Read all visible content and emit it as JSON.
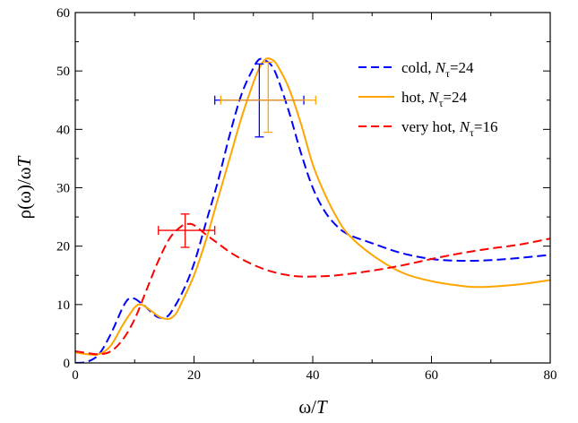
{
  "chart_data": {
    "type": "line",
    "xlabel": {
      "main": "ω/",
      "italic": "T"
    },
    "ylabel": {
      "main": "ρ(ω)/ω",
      "italic": "T"
    },
    "xlim": [
      0,
      80
    ],
    "ylim": [
      0,
      60
    ],
    "x_ticks": [
      0,
      20,
      40,
      60,
      80
    ],
    "y_ticks": [
      0,
      10,
      20,
      30,
      40,
      50,
      60
    ],
    "grid": false,
    "legend_position": "top-right",
    "series": [
      {
        "name": {
          "prefix": "cold, ",
          "var": "N",
          "sub": "τ",
          "suffix": "=24"
        },
        "color": "#0000ff",
        "style": "dashed",
        "points": [
          [
            0,
            0
          ],
          [
            2,
            0.2
          ],
          [
            4,
            1.5
          ],
          [
            6,
            5
          ],
          [
            8,
            9.5
          ],
          [
            9,
            11
          ],
          [
            10,
            11
          ],
          [
            11,
            10.3
          ],
          [
            12,
            9.5
          ],
          [
            13,
            8.5
          ],
          [
            14,
            7.8
          ],
          [
            15,
            7.8
          ],
          [
            16,
            8.5
          ],
          [
            18,
            12
          ],
          [
            20,
            17
          ],
          [
            22,
            24
          ],
          [
            24,
            31
          ],
          [
            26,
            39
          ],
          [
            28,
            46
          ],
          [
            30,
            50.5
          ],
          [
            31,
            52
          ],
          [
            32,
            51.8
          ],
          [
            33,
            51
          ],
          [
            34,
            49
          ],
          [
            36,
            43
          ],
          [
            38,
            36
          ],
          [
            40,
            30
          ],
          [
            42,
            26
          ],
          [
            44,
            23.5
          ],
          [
            46,
            22
          ],
          [
            50,
            20.5
          ],
          [
            55,
            18.8
          ],
          [
            60,
            17.8
          ],
          [
            65,
            17.5
          ],
          [
            70,
            17.6
          ],
          [
            75,
            18
          ],
          [
            80,
            18.5
          ]
        ]
      },
      {
        "name": {
          "prefix": "hot, ",
          "var": "N",
          "sub": "τ",
          "suffix": "=24"
        },
        "color": "#ffa500",
        "style": "solid",
        "points": [
          [
            0,
            1.8
          ],
          [
            2,
            1.5
          ],
          [
            4,
            1.5
          ],
          [
            6,
            3
          ],
          [
            8,
            6.5
          ],
          [
            10,
            9.5
          ],
          [
            11,
            10
          ],
          [
            12,
            9.5
          ],
          [
            14,
            8
          ],
          [
            15,
            7.6
          ],
          [
            16,
            7.6
          ],
          [
            17,
            8.5
          ],
          [
            18,
            10.5
          ],
          [
            20,
            15
          ],
          [
            22,
            21
          ],
          [
            24,
            28
          ],
          [
            26,
            35
          ],
          [
            28,
            42
          ],
          [
            30,
            48
          ],
          [
            31,
            50.5
          ],
          [
            32,
            52
          ],
          [
            33,
            52
          ],
          [
            34,
            51
          ],
          [
            36,
            47
          ],
          [
            38,
            41
          ],
          [
            40,
            34
          ],
          [
            42,
            29
          ],
          [
            44,
            25
          ],
          [
            46,
            22
          ],
          [
            50,
            18.5
          ],
          [
            55,
            15.5
          ],
          [
            60,
            14
          ],
          [
            65,
            13.2
          ],
          [
            68,
            13
          ],
          [
            72,
            13.2
          ],
          [
            76,
            13.6
          ],
          [
            80,
            14.2
          ]
        ]
      },
      {
        "name": {
          "prefix": "very hot, ",
          "var": "N",
          "sub": "τ",
          "suffix": "=16"
        },
        "color": "#ff0000",
        "style": "dashed",
        "points": [
          [
            0,
            2
          ],
          [
            2,
            1.7
          ],
          [
            4,
            1.5
          ],
          [
            6,
            2
          ],
          [
            8,
            4
          ],
          [
            10,
            7.5
          ],
          [
            12,
            12.5
          ],
          [
            14,
            17.5
          ],
          [
            16,
            21.5
          ],
          [
            18,
            23.5
          ],
          [
            19,
            23.8
          ],
          [
            20,
            23.6
          ],
          [
            22,
            22
          ],
          [
            24,
            20.5
          ],
          [
            26,
            19
          ],
          [
            28,
            17.8
          ],
          [
            30,
            16.8
          ],
          [
            32,
            16
          ],
          [
            34,
            15.4
          ],
          [
            36,
            15
          ],
          [
            38,
            14.8
          ],
          [
            40,
            14.8
          ],
          [
            44,
            15
          ],
          [
            50,
            15.8
          ],
          [
            55,
            16.7
          ],
          [
            60,
            17.8
          ],
          [
            65,
            18.8
          ],
          [
            70,
            19.6
          ],
          [
            75,
            20.3
          ],
          [
            80,
            21.3
          ]
        ]
      }
    ],
    "error_bars": [
      {
        "color": "#0000ff",
        "x": 31.0,
        "x_err": [
          23.5,
          38.5
        ],
        "y": 45.0,
        "y_err": [
          38.7,
          51.2
        ]
      },
      {
        "color": "#ffa500",
        "x": 32.5,
        "x_err": [
          24.5,
          40.5
        ],
        "y": 45.0,
        "y_err": [
          39.5,
          51.5
        ]
      },
      {
        "color": "#ff0000",
        "x": 18.5,
        "x_err": [
          14.0,
          23.5
        ],
        "y": 22.7,
        "y_err": [
          19.8,
          25.5
        ]
      }
    ]
  }
}
